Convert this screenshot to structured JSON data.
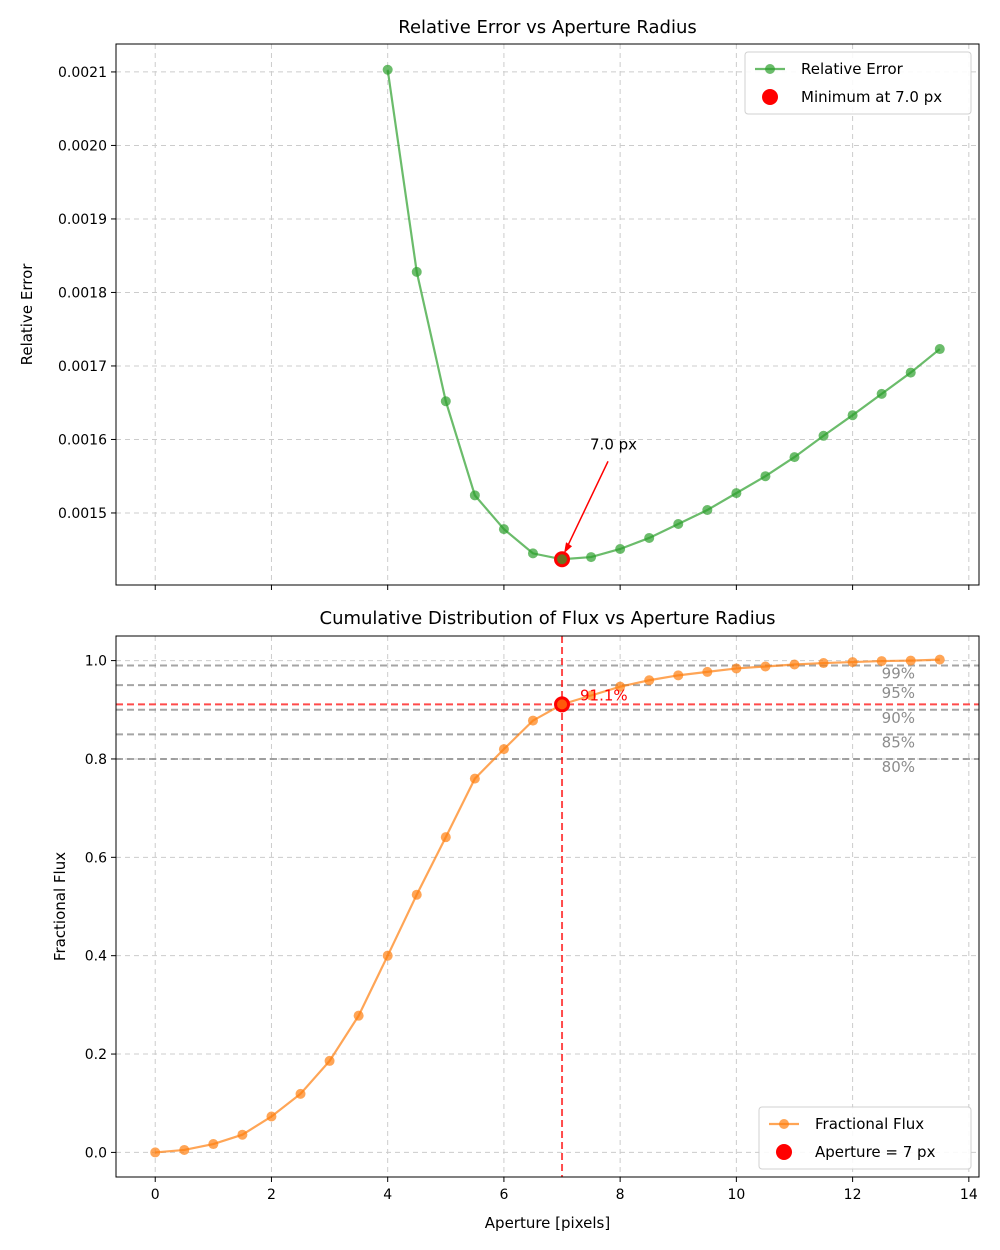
{
  "colors": {
    "error_line": "#2ca02c",
    "flux_line": "#ff7f0e",
    "highlight": "#ff0000",
    "reference_lines": "#808080",
    "grid": "#cccccc"
  },
  "chart_data": [
    {
      "type": "line",
      "title": "Relative Error vs Aperture Radius",
      "xlabel": "",
      "ylabel": "Relative Error",
      "xlim": [
        -0.675,
        14.175
      ],
      "ylim": [
        0.001402,
        0.002138
      ],
      "xticks": [
        0,
        2,
        4,
        6,
        8,
        10,
        12,
        14
      ],
      "yticks": [
        0.0015,
        0.0016,
        0.0017,
        0.0018,
        0.0019,
        0.002,
        0.0021
      ],
      "ytick_labels": [
        "0.0015",
        "0.0016",
        "0.0017",
        "0.0018",
        "0.0019",
        "0.0020",
        "0.0021"
      ],
      "grid": true,
      "legend_position": "top-right",
      "series": [
        {
          "name": "Relative Error",
          "x": [
            4.0,
            4.5,
            5.0,
            5.5,
            6.0,
            6.5,
            7.0,
            7.5,
            8.0,
            8.5,
            9.0,
            9.5,
            10.0,
            10.5,
            11.0,
            11.5,
            12.0,
            12.5,
            13.0,
            13.5
          ],
          "y": [
            0.002103,
            0.001828,
            0.001652,
            0.001524,
            0.001478,
            0.001445,
            0.001437,
            0.00144,
            0.001451,
            0.001466,
            0.001485,
            0.001504,
            0.001527,
            0.00155,
            0.001576,
            0.001605,
            0.001633,
            0.001662,
            0.001691,
            0.001723
          ]
        }
      ],
      "highlight": {
        "name": "Minimum at 7.0 px",
        "x": 7.0,
        "y": 0.001437
      },
      "annotation": {
        "text": "7.0 px",
        "x": 7.0,
        "y": 0.001437
      }
    },
    {
      "type": "line",
      "title": "Cumulative Distribution of Flux vs Aperture Radius",
      "xlabel": "Aperture [pixels]",
      "ylabel": "Fractional Flux",
      "xlim": [
        -0.675,
        14.175
      ],
      "ylim": [
        -0.05,
        1.05
      ],
      "xticks": [
        0,
        2,
        4,
        6,
        8,
        10,
        12,
        14
      ],
      "yticks": [
        0.0,
        0.2,
        0.4,
        0.6,
        0.8,
        1.0
      ],
      "ytick_labels": [
        "0.0",
        "0.2",
        "0.4",
        "0.6",
        "0.8",
        "1.0"
      ],
      "grid": true,
      "legend_position": "bottom-right",
      "series": [
        {
          "name": "Fractional Flux",
          "x": [
            0.0,
            0.5,
            1.0,
            1.5,
            2.0,
            2.5,
            3.0,
            3.5,
            4.0,
            4.5,
            5.0,
            5.5,
            6.0,
            6.5,
            7.0,
            7.5,
            8.0,
            8.5,
            9.0,
            9.5,
            10.0,
            10.5,
            11.0,
            11.5,
            12.0,
            12.5,
            13.0,
            13.5
          ],
          "y": [
            0.0,
            0.005,
            0.017,
            0.036,
            0.073,
            0.119,
            0.186,
            0.278,
            0.4,
            0.524,
            0.641,
            0.76,
            0.82,
            0.878,
            0.911,
            0.929,
            0.947,
            0.96,
            0.97,
            0.977,
            0.984,
            0.988,
            0.992,
            0.995,
            0.997,
            0.999,
            1.0,
            1.002
          ]
        }
      ],
      "highlight": {
        "name": "Aperture = 7 px",
        "x": 7.0,
        "y": 0.911
      },
      "annotation": {
        "text": "91.1%",
        "x": 7.0,
        "y": 0.911
      },
      "reference_lines": [
        {
          "y": 0.8,
          "label": "80%"
        },
        {
          "y": 0.85,
          "label": "85%"
        },
        {
          "y": 0.9,
          "label": "90%"
        },
        {
          "y": 0.95,
          "label": "95%"
        },
        {
          "y": 0.99,
          "label": "99%"
        }
      ]
    }
  ]
}
